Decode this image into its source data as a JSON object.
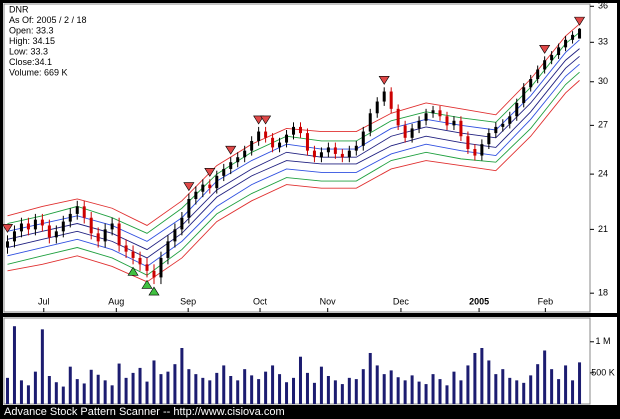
{
  "chart_data": {
    "type": "candlestick",
    "info": [
      "DNR",
      "As Of: 2005 / 2 / 18",
      "Open: 33.3",
      "High: 34.15",
      "Low: 33.3",
      "Close:34.1",
      "Volume: 669 K"
    ],
    "footer": "Advance Stock Pattern Scanner -- http://www.cisiova.com",
    "log": true,
    "xlim": [
      -0.5,
      83.5
    ],
    "xticks": [
      {
        "value": 5.2,
        "label": "Jul"
      },
      {
        "value": 15.6,
        "label": "Aug"
      },
      {
        "value": 25.9,
        "label": "Sep"
      },
      {
        "value": 36.2,
        "label": "Oct"
      },
      {
        "value": 45.9,
        "label": "Nov"
      },
      {
        "value": 56.4,
        "label": "Dec"
      },
      {
        "value": 67.6,
        "label": "2005"
      },
      {
        "value": 77.1,
        "label": "Feb"
      }
    ],
    "ylim": [
      17.2,
      36.2
    ],
    "yticks": [
      18,
      21,
      24,
      27,
      30,
      33,
      36
    ],
    "up_color": "#000000",
    "down_color": "#cc0000",
    "candles": [
      [
        20.1,
        20.7,
        19.8,
        20.4
      ],
      [
        20.4,
        21.2,
        20.1,
        20.9
      ],
      [
        20.9,
        21.6,
        20.6,
        21.3
      ],
      [
        21.3,
        21.6,
        20.7,
        21.0
      ],
      [
        21.0,
        21.8,
        20.7,
        21.5
      ],
      [
        21.5,
        21.8,
        20.9,
        21.2
      ],
      [
        21.2,
        21.5,
        20.3,
        20.6
      ],
      [
        20.6,
        21.2,
        20.3,
        20.9
      ],
      [
        20.9,
        21.7,
        20.6,
        21.4
      ],
      [
        21.4,
        22.1,
        21.1,
        21.8
      ],
      [
        21.8,
        22.5,
        21.5,
        22.2
      ],
      [
        22.2,
        22.5,
        21.3,
        21.6
      ],
      [
        21.6,
        21.9,
        20.5,
        20.8
      ],
      [
        20.8,
        21.1,
        20.1,
        20.4
      ],
      [
        20.4,
        21.3,
        20.1,
        21.0
      ],
      [
        21.0,
        21.6,
        20.7,
        21.3
      ],
      [
        21.3,
        21.6,
        19.9,
        20.2
      ],
      [
        20.2,
        20.5,
        19.6,
        19.9
      ],
      [
        19.9,
        20.2,
        19.3,
        19.6
      ],
      [
        19.6,
        19.9,
        19.0,
        19.3
      ],
      [
        19.3,
        19.6,
        18.7,
        19.0
      ],
      [
        19.0,
        19.3,
        18.4,
        18.7
      ],
      [
        18.7,
        19.9,
        18.4,
        19.6
      ],
      [
        19.6,
        20.7,
        19.3,
        20.4
      ],
      [
        20.4,
        21.3,
        20.1,
        21.0
      ],
      [
        21.0,
        21.9,
        20.7,
        21.6
      ],
      [
        21.6,
        22.9,
        21.3,
        22.6
      ],
      [
        22.6,
        23.3,
        22.3,
        23.0
      ],
      [
        23.0,
        23.7,
        22.7,
        23.4
      ],
      [
        23.4,
        23.7,
        22.9,
        23.2
      ],
      [
        23.2,
        24.2,
        22.9,
        23.9
      ],
      [
        23.9,
        24.6,
        23.6,
        24.3
      ],
      [
        24.3,
        25.0,
        24.0,
        24.7
      ],
      [
        24.7,
        25.3,
        24.4,
        25.0
      ],
      [
        25.0,
        25.7,
        24.7,
        25.4
      ],
      [
        25.4,
        26.3,
        25.1,
        26.0
      ],
      [
        26.0,
        26.9,
        25.7,
        26.6
      ],
      [
        26.6,
        26.9,
        25.9,
        26.2
      ],
      [
        26.2,
        26.5,
        25.3,
        25.6
      ],
      [
        25.6,
        26.2,
        25.3,
        25.9
      ],
      [
        25.9,
        26.7,
        25.6,
        26.4
      ],
      [
        26.4,
        27.2,
        26.1,
        26.9
      ],
      [
        26.9,
        27.2,
        26.2,
        26.5
      ],
      [
        26.5,
        26.8,
        25.1,
        25.4
      ],
      [
        25.4,
        25.7,
        24.7,
        25.0
      ],
      [
        25.0,
        25.6,
        24.7,
        25.3
      ],
      [
        25.3,
        25.9,
        25.0,
        25.6
      ],
      [
        25.6,
        25.9,
        24.9,
        25.2
      ],
      [
        25.2,
        25.5,
        24.7,
        25.0
      ],
      [
        25.0,
        25.7,
        24.7,
        25.4
      ],
      [
        25.4,
        26.0,
        25.1,
        25.7
      ],
      [
        25.7,
        26.9,
        25.4,
        26.6
      ],
      [
        26.6,
        28.1,
        26.3,
        27.8
      ],
      [
        27.8,
        28.9,
        27.5,
        28.6
      ],
      [
        28.6,
        29.6,
        28.3,
        29.3
      ],
      [
        29.3,
        29.6,
        27.8,
        28.1
      ],
      [
        28.1,
        28.4,
        26.7,
        27.0
      ],
      [
        27.0,
        27.3,
        25.9,
        26.2
      ],
      [
        26.2,
        27.1,
        25.9,
        26.8
      ],
      [
        26.8,
        27.6,
        26.5,
        27.3
      ],
      [
        27.3,
        28.1,
        27.0,
        27.8
      ],
      [
        27.8,
        28.3,
        27.5,
        28.0
      ],
      [
        28.0,
        28.3,
        27.3,
        27.6
      ],
      [
        27.6,
        27.9,
        26.7,
        27.0
      ],
      [
        27.0,
        27.6,
        26.7,
        27.3
      ],
      [
        27.3,
        27.6,
        26.0,
        26.3
      ],
      [
        26.3,
        26.6,
        25.2,
        25.5
      ],
      [
        25.5,
        25.8,
        24.8,
        25.1
      ],
      [
        25.1,
        26.1,
        24.8,
        25.8
      ],
      [
        25.8,
        26.8,
        25.5,
        26.5
      ],
      [
        26.5,
        27.2,
        26.2,
        26.9
      ],
      [
        26.9,
        27.4,
        26.6,
        27.1
      ],
      [
        27.1,
        27.9,
        26.8,
        27.6
      ],
      [
        27.6,
        28.8,
        27.3,
        28.5
      ],
      [
        28.5,
        29.9,
        28.2,
        29.6
      ],
      [
        29.6,
        30.5,
        29.3,
        30.2
      ],
      [
        30.2,
        31.2,
        29.9,
        30.9
      ],
      [
        30.9,
        31.9,
        30.6,
        31.6
      ],
      [
        31.6,
        32.3,
        31.3,
        32.0
      ],
      [
        32.0,
        32.9,
        31.7,
        32.6
      ],
      [
        32.6,
        33.5,
        32.3,
        33.2
      ],
      [
        33.2,
        33.9,
        32.9,
        33.6
      ],
      [
        33.3,
        34.15,
        33.3,
        34.1
      ]
    ],
    "band_x": [
      0,
      5,
      10,
      15,
      20,
      25,
      30,
      35,
      40,
      45,
      50,
      55,
      60,
      65,
      70,
      75,
      80,
      82
    ],
    "bands": [
      {
        "color": "#e03030",
        "values": [
          21.7,
          22.2,
          22.6,
          22.1,
          21.2,
          22.5,
          24.5,
          25.8,
          26.8,
          26.6,
          26.6,
          27.8,
          28.5,
          28.1,
          27.7,
          30.2,
          33.5,
          34.5
        ]
      },
      {
        "color": "#20a040",
        "values": [
          21.3,
          21.7,
          22.2,
          21.6,
          20.8,
          22.1,
          24.0,
          25.3,
          26.3,
          26.0,
          26.0,
          27.3,
          27.9,
          27.5,
          27.2,
          29.6,
          32.9,
          33.8
        ]
      },
      {
        "color": "#3050e0",
        "values": [
          20.9,
          21.3,
          21.7,
          21.2,
          20.4,
          21.6,
          23.6,
          24.8,
          25.8,
          25.5,
          25.5,
          26.8,
          27.4,
          27.0,
          26.7,
          29.0,
          32.2,
          33.2
        ]
      },
      {
        "color": "#202080",
        "values": [
          20.5,
          20.9,
          21.3,
          20.8,
          20.0,
          21.2,
          23.1,
          24.3,
          25.3,
          25.0,
          25.0,
          26.3,
          26.9,
          26.5,
          26.2,
          28.5,
          31.6,
          32.5
        ]
      },
      {
        "color": "#202080",
        "values": [
          20.1,
          20.5,
          20.9,
          20.4,
          19.6,
          20.8,
          22.7,
          23.9,
          24.8,
          24.6,
          24.6,
          25.7,
          26.3,
          25.9,
          25.6,
          27.9,
          31.0,
          31.9
        ]
      },
      {
        "color": "#3050e0",
        "values": [
          19.7,
          20.1,
          20.5,
          20.0,
          19.2,
          20.4,
          22.2,
          23.4,
          24.3,
          24.1,
          24.1,
          25.2,
          25.8,
          25.4,
          25.1,
          27.4,
          30.4,
          31.3
        ]
      },
      {
        "color": "#20a040",
        "values": [
          19.3,
          19.7,
          20.1,
          19.6,
          18.8,
          20.0,
          21.8,
          22.9,
          23.8,
          23.6,
          23.6,
          24.8,
          25.3,
          24.9,
          24.7,
          26.8,
          29.8,
          30.7
        ]
      },
      {
        "color": "#e03030",
        "values": [
          19.0,
          19.3,
          19.7,
          19.2,
          18.5,
          19.6,
          21.4,
          22.5,
          23.4,
          23.2,
          23.2,
          24.3,
          24.8,
          24.5,
          24.2,
          26.3,
          29.2,
          30.1
        ]
      }
    ],
    "sell_signals": {
      "color": "#e04848",
      "x": [
        0,
        26,
        29,
        32,
        36,
        37,
        54,
        77,
        82
      ],
      "values": [
        20.7,
        22.9,
        23.7,
        25.0,
        26.9,
        26.9,
        29.6,
        31.9,
        34.15
      ]
    },
    "buy_signals": {
      "color": "#40c040",
      "x": [
        18,
        20,
        21
      ],
      "values": [
        19.3,
        18.7,
        18.4
      ]
    },
    "volume_color": "#1c1c70",
    "volume_ylim": [
      0,
      1350000
    ],
    "volume_ticks": [
      {
        "value": 1000000,
        "label": "1 M"
      },
      {
        "value": 500000,
        "label": "500 K"
      }
    ],
    "volume": [
      420000,
      1250000,
      380000,
      300000,
      520000,
      1200000,
      450000,
      350000,
      280000,
      600000,
      400000,
      330000,
      550000,
      470000,
      380000,
      300000,
      650000,
      420000,
      500000,
      580000,
      360000,
      700000,
      480000,
      520000,
      640000,
      900000,
      560000,
      480000,
      420000,
      380000,
      500000,
      620000,
      450000,
      380000,
      560000,
      460000,
      400000,
      520000,
      620000,
      480000,
      350000,
      420000,
      760000,
      500000,
      340000,
      600000,
      450000,
      380000,
      320000,
      420000,
      400000,
      560000,
      820000,
      620000,
      480000,
      540000,
      430000,
      380000,
      460000,
      360000,
      320000,
      480000,
      400000,
      300000,
      520000,
      380000,
      620000,
      820000,
      900000,
      700000,
      480000,
      560000,
      420000,
      380000,
      340000,
      460000,
      640000,
      860000,
      560000,
      400000,
      620000,
      380000,
      669000
    ]
  }
}
